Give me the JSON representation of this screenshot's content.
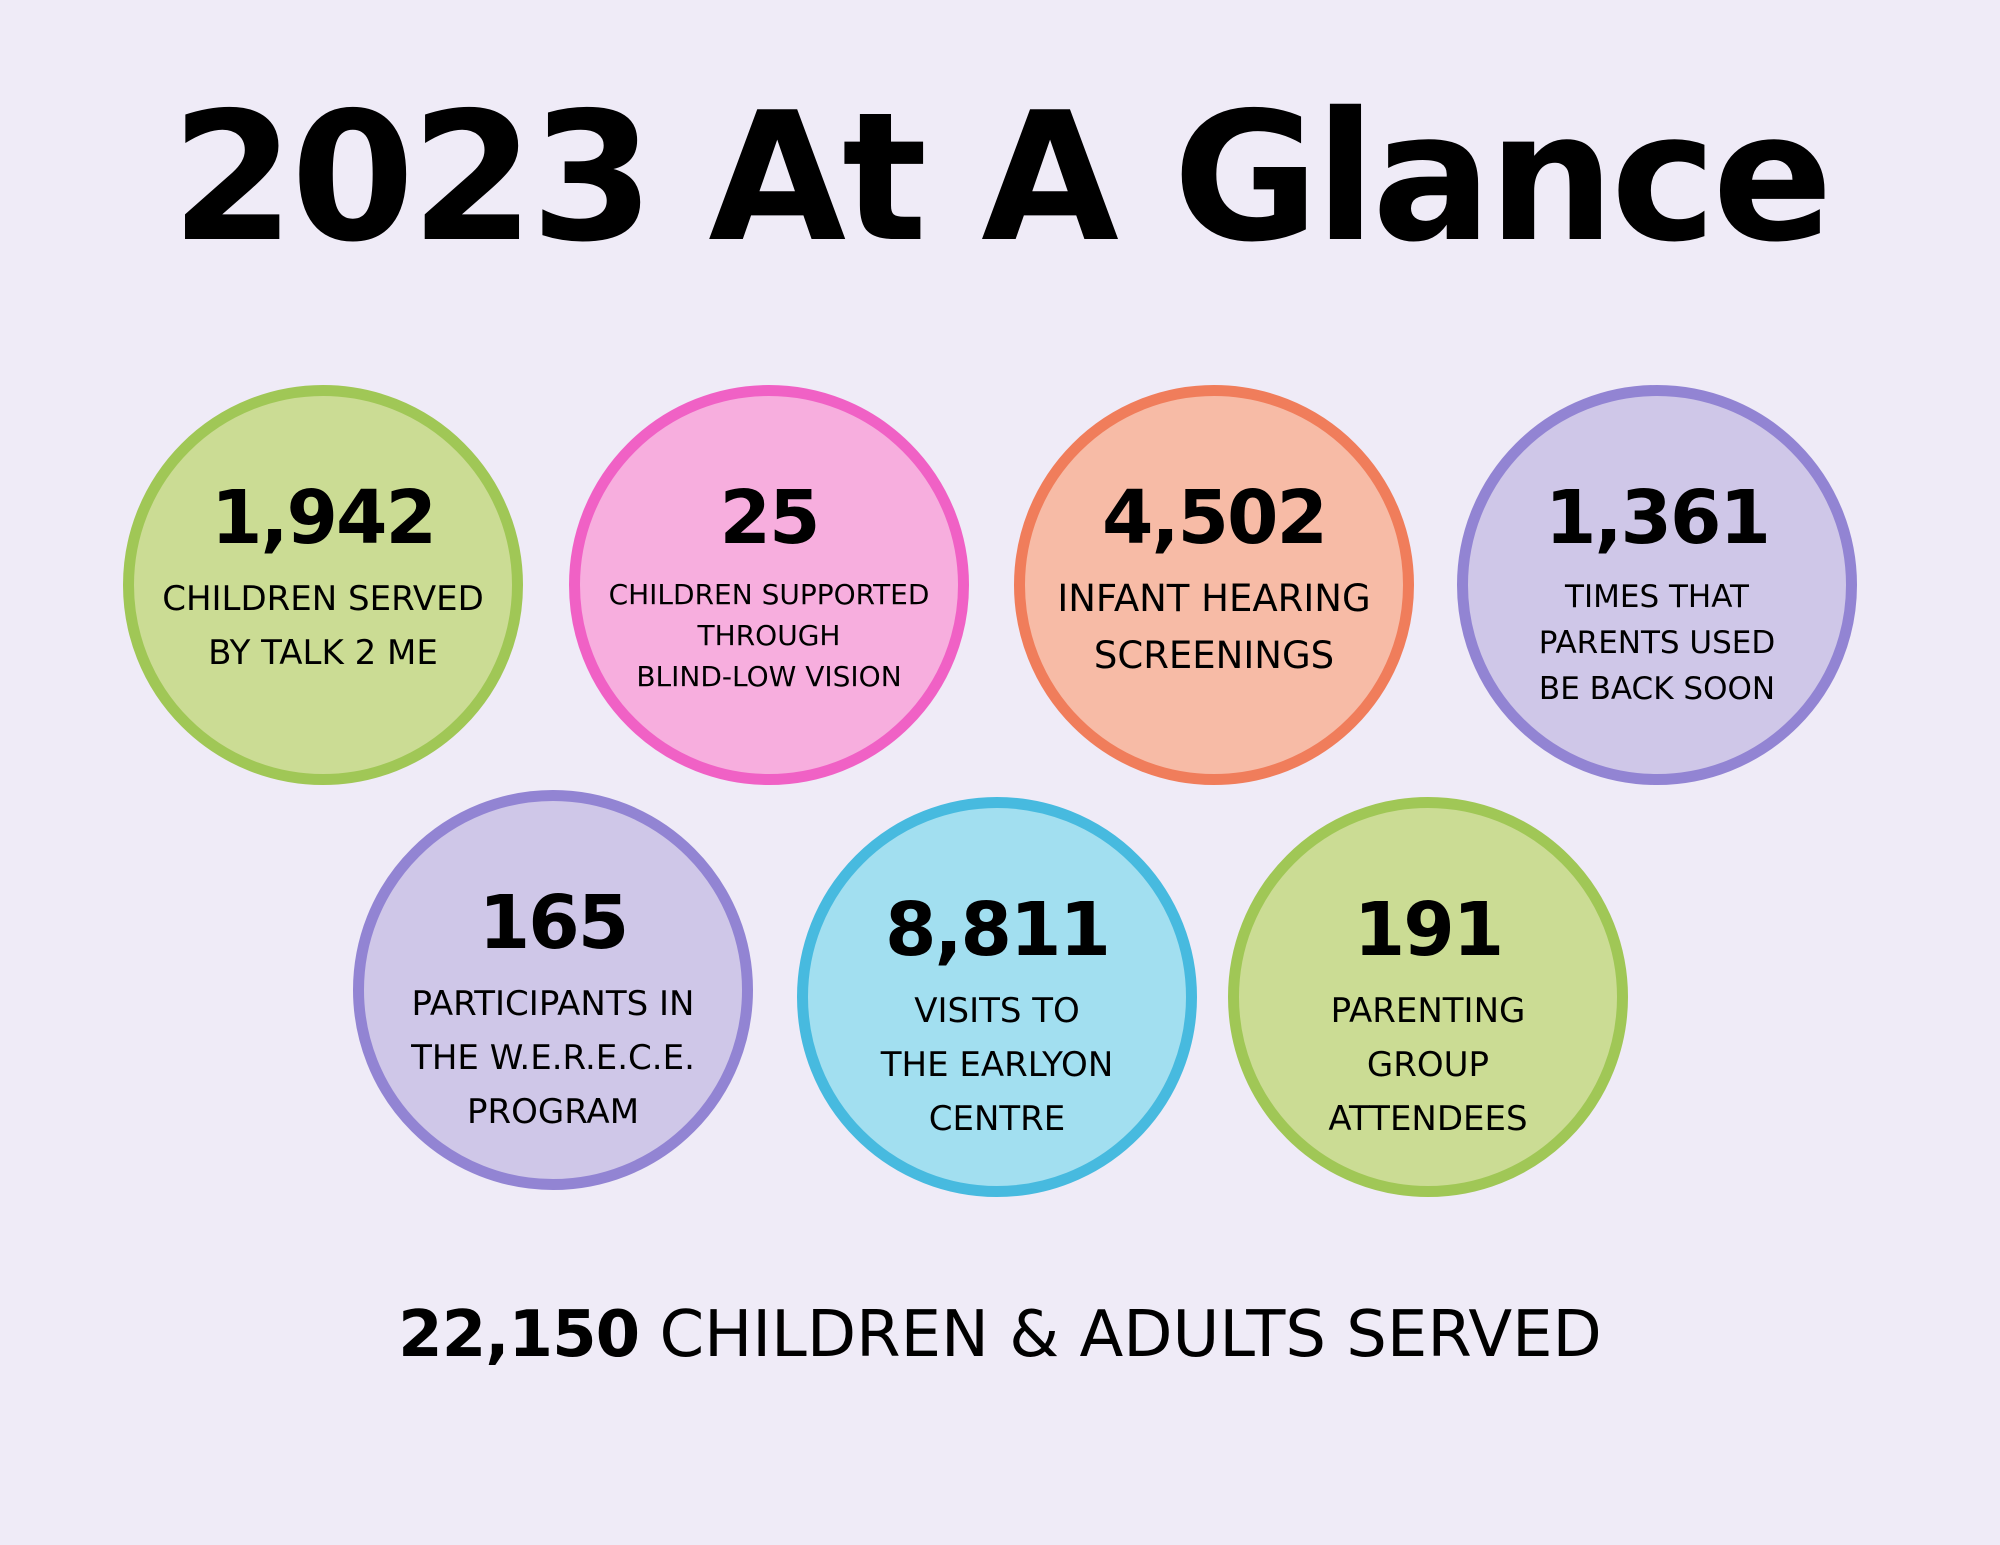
{
  "title": "2023 At A Glance",
  "stats": [
    {
      "value": "1,942",
      "label": "CHILDREN SERVED\nBY TALK 2 ME",
      "fill": "#cbdc94",
      "border": "#a0c756"
    },
    {
      "value": "25",
      "label": "CHILDREN SUPPORTED\nTHROUGH\nBLIND-LOW VISION",
      "fill": "#f7aede",
      "border": "#f061c5"
    },
    {
      "value": "4,502",
      "label": "INFANT HEARING\nSCREENINGS",
      "fill": "#f7bba6",
      "border": "#f07d5b"
    },
    {
      "value": "1,361",
      "label": "TIMES THAT\nPARENTS USED\nBE BACK SOON",
      "fill": "#cfc7e8",
      "border": "#9284d3"
    },
    {
      "value": "165",
      "label": "PARTICIPANTS IN\nTHE W.E.R.E.C.E.\nPROGRAM",
      "fill": "#cfc7e8",
      "border": "#9284d3"
    },
    {
      "value": "8,811",
      "label": "VISITS TO\nTHE EARLYON\nCENTRE",
      "fill": "#a2dff0",
      "border": "#47badf"
    },
    {
      "value": "191",
      "label": "PARENTING\nGROUP\nATTENDEES",
      "fill": "#cbdc94",
      "border": "#a0c756"
    }
  ],
  "summary": {
    "value": "22,150",
    "label": " CHILDREN & ADULTS SERVED"
  }
}
